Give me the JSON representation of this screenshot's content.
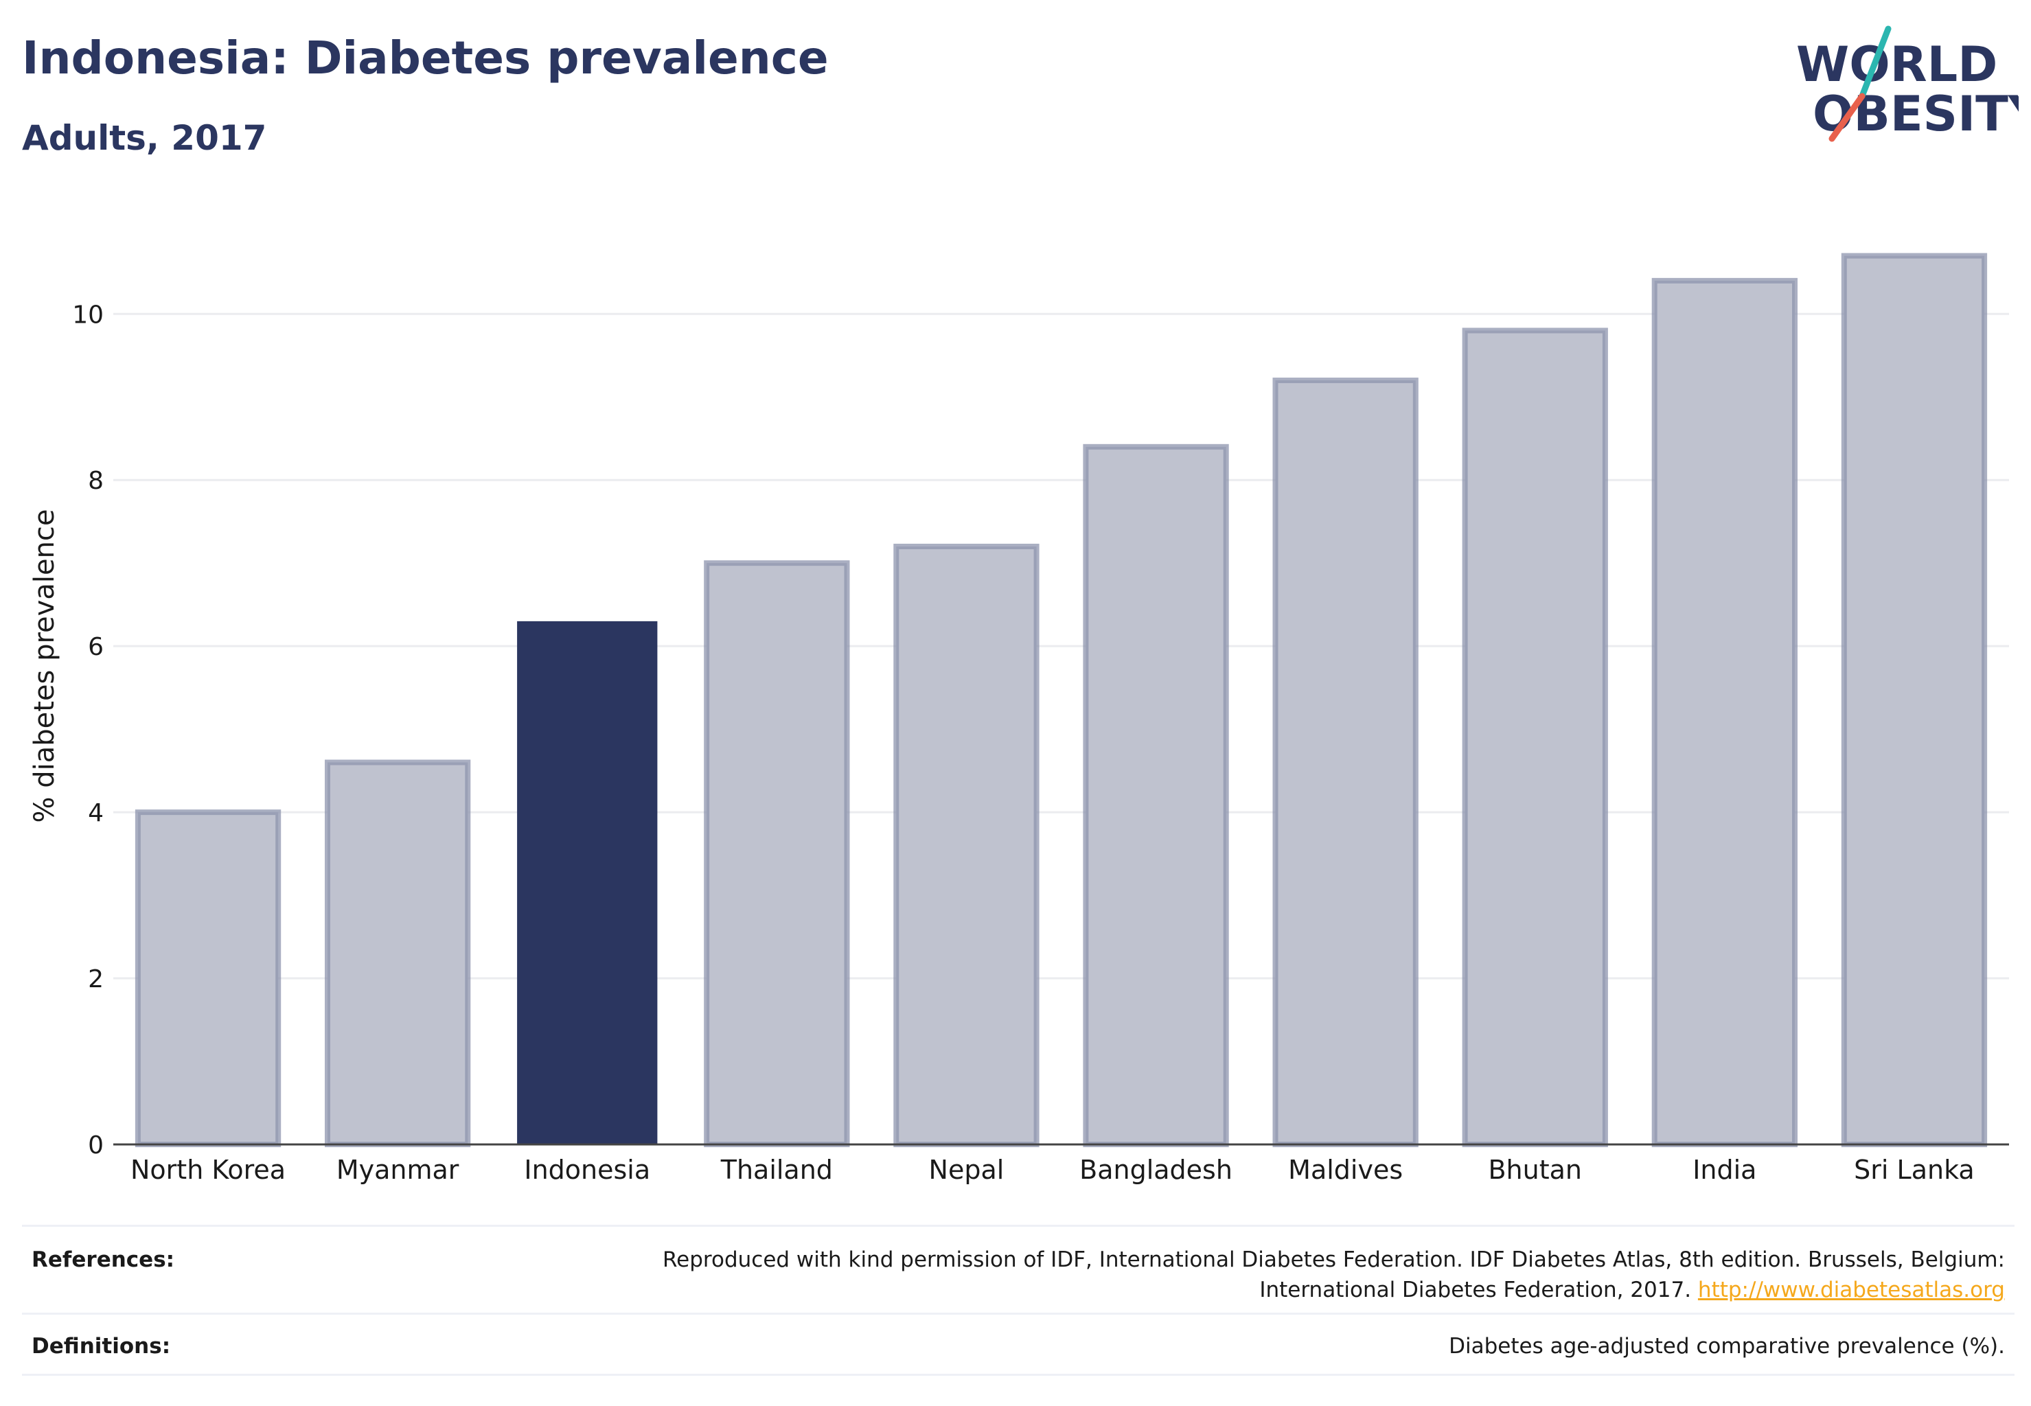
{
  "header": {
    "title": "Indonesia: Diabetes prevalence",
    "subtitle": "Adults, 2017"
  },
  "logo": {
    "line1": "WORLD",
    "line2": "OBESITY",
    "icon": "world-obesity-logo"
  },
  "colors": {
    "highlight": "#2b3660",
    "bar_fill": "#bfc2cf",
    "bar_stroke": "#8e94ad",
    "grid": "#ebecef",
    "axis": "#444444",
    "link": "#f5a81c",
    "logo_teal": "#2bb6b0",
    "logo_red": "#e8604c"
  },
  "chart_data": {
    "type": "bar",
    "categories": [
      "North Korea",
      "Myanmar",
      "Indonesia",
      "Thailand",
      "Nepal",
      "Bangladesh",
      "Maldives",
      "Bhutan",
      "India",
      "Sri Lanka"
    ],
    "values": [
      4.0,
      4.6,
      6.3,
      7.0,
      7.2,
      8.4,
      9.2,
      9.8,
      10.4,
      10.7
    ],
    "highlight": "Indonesia",
    "ylabel": "% diabetes prevalence",
    "xlabel": "",
    "ylim": [
      0,
      11.3
    ],
    "yticks": [
      0,
      2,
      4,
      6,
      8,
      10
    ],
    "grid": true
  },
  "footer": {
    "references_label": "References:",
    "references_text_line1": "Reproduced with kind permission of IDF, International Diabetes Federation. IDF Diabetes Atlas, 8th edition. Brussels, Belgium:",
    "references_text_line2": "International Diabetes Federation, 2017.",
    "references_link": "http://www.diabetesatlas.org",
    "definitions_label": "Definitions:",
    "definitions_text": "Diabetes age-adjusted comparative prevalence (%)."
  }
}
